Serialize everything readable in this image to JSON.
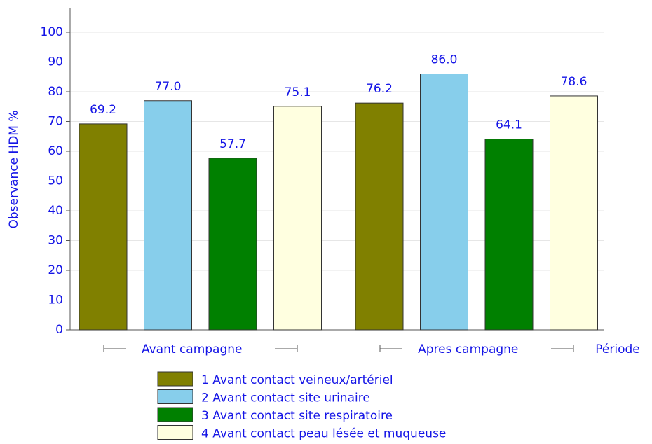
{
  "chart_data": {
    "type": "bar",
    "y_label": "Observance HDM %",
    "x_label": "Période",
    "categories": [
      "Avant campagne",
      "Apres campagne"
    ],
    "series": [
      {
        "name": "1 Avant contact veineux/artériel",
        "color": "#808000",
        "values": [
          69.2,
          76.2
        ],
        "value_labels": [
          "69.2",
          "76.2"
        ]
      },
      {
        "name": "2 Avant contact site urinaire",
        "color": "#87ceeb",
        "values": [
          77.0,
          86.0
        ],
        "value_labels": [
          "77.0",
          "86.0"
        ]
      },
      {
        "name": "3 Avant contact site respiratoire",
        "color": "#008000",
        "values": [
          57.7,
          64.1
        ],
        "value_labels": [
          "57.7",
          "64.1"
        ]
      },
      {
        "name": "4 Avant contact peau lésée  et muqueuse",
        "color": "#ffffe0",
        "values": [
          75.1,
          78.6
        ],
        "value_labels": [
          "75.1",
          "78.6"
        ]
      }
    ],
    "ylim": [
      0,
      108
    ],
    "yticks": [
      0,
      10,
      20,
      30,
      40,
      50,
      60,
      70,
      80,
      90,
      100
    ],
    "grid": true
  }
}
